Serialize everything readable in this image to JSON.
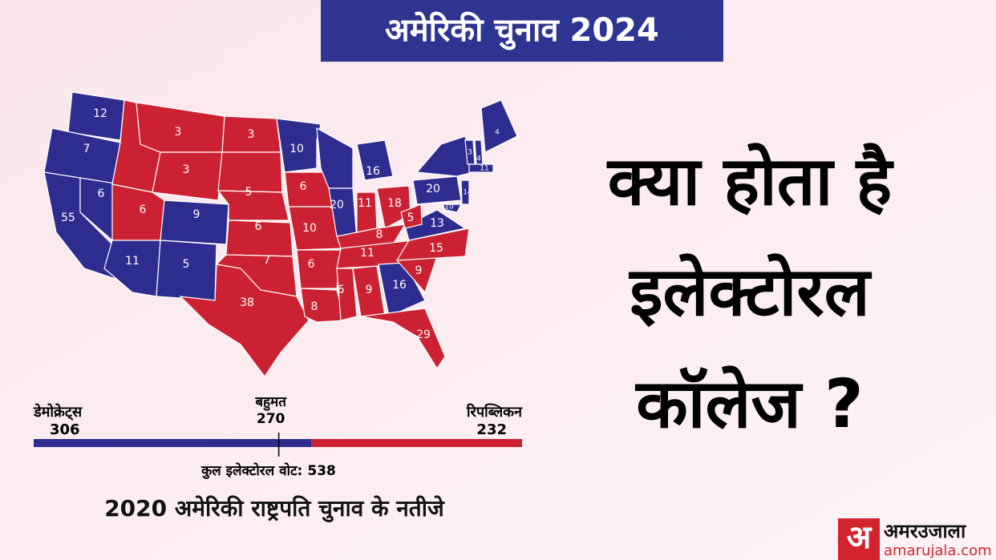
{
  "header": {
    "title": "अमेरिकी चुनाव 2024"
  },
  "headline": [
    "क्या होता है",
    "इलेक्टोरल",
    "कॉलेज ?"
  ],
  "map": {
    "states": [
      {
        "label": "12",
        "color": "#2e2d8f"
      },
      {
        "label": "7",
        "color": "#2e2d8f"
      },
      {
        "label": "55",
        "color": "#2e2d8f"
      },
      {
        "label": "6",
        "color": "#2e2d8f"
      },
      {
        "label": null,
        "color": "#cc2133"
      },
      {
        "label": "3",
        "color": "#cc2133"
      },
      {
        "label": "3",
        "color": "#cc2133"
      },
      {
        "label": "6",
        "color": "#cc2133"
      },
      {
        "label": "9",
        "color": "#2e2d8f"
      },
      {
        "label": "11",
        "color": "#2e2d8f"
      },
      {
        "label": "5",
        "color": "#2e2d8f"
      },
      {
        "label": "3",
        "color": "#cc2133"
      },
      {
        "label": null,
        "color": "#cc2133"
      },
      {
        "label": "5",
        "color": "#cc2133"
      },
      {
        "label": "6",
        "color": "#cc2133"
      },
      {
        "label": "7",
        "color": "#cc2133"
      },
      {
        "label": "38",
        "color": "#cc2133"
      },
      {
        "label": "10",
        "color": "#2e2d8f"
      },
      {
        "label": "6",
        "color": "#cc2133"
      },
      {
        "label": "10",
        "color": "#cc2133"
      },
      {
        "label": "6",
        "color": "#cc2133"
      },
      {
        "label": "8",
        "color": "#cc2133"
      },
      {
        "label": null,
        "color": "#2e2d8f"
      },
      {
        "label": "16",
        "color": "#2e2d8f"
      },
      {
        "label": "20",
        "color": "#2e2d8f"
      },
      {
        "label": "11",
        "color": "#cc2133"
      },
      {
        "label": "18",
        "color": "#cc2133"
      },
      {
        "label": "8",
        "color": "#cc2133"
      },
      {
        "label": "11",
        "color": "#cc2133"
      },
      {
        "label": "6",
        "color": "#cc2133"
      },
      {
        "label": "9",
        "color": "#cc2133"
      },
      {
        "label": "16",
        "color": "#2e2d8f"
      },
      {
        "label": "29",
        "color": "#cc2133"
      },
      {
        "label": "9",
        "color": "#cc2133"
      },
      {
        "label": "15",
        "color": "#cc2133"
      },
      {
        "label": "13",
        "color": "#2e2d8f"
      },
      {
        "label": "5",
        "color": "#cc2133"
      },
      {
        "label": "20",
        "color": "#2e2d8f"
      },
      {
        "label": null,
        "color": "#2e2d8f"
      },
      {
        "label": "14",
        "color": "#2e2d8f"
      },
      {
        "label": "10",
        "color": "#2e2d8f"
      },
      {
        "label": "3",
        "color": "#2e2d8f"
      },
      {
        "label": "4",
        "color": "#2e2d8f"
      },
      {
        "label": "4",
        "color": "#2e2d8f"
      },
      {
        "label": "11",
        "color": "#2e2d8f"
      }
    ]
  },
  "chart_data": {
    "type": "bar",
    "title": "2020 अमेरिकी राष्ट्रपति चुनाव के नतीजे",
    "series": [
      {
        "name": "डेमोक्रेट्स",
        "color": "#2e2d8f",
        "values": [
          306
        ]
      },
      {
        "name": "रिपब्लिकन",
        "color": "#cc2133",
        "values": [
          232
        ]
      }
    ],
    "majority_label": "बहुमत",
    "majority": 270,
    "total_label": "कुल इलेक्टोरल वोट:",
    "total": 538
  },
  "logo": {
    "mark": "अ",
    "name": "अमरउजाला",
    "url": "amarujala.com"
  }
}
